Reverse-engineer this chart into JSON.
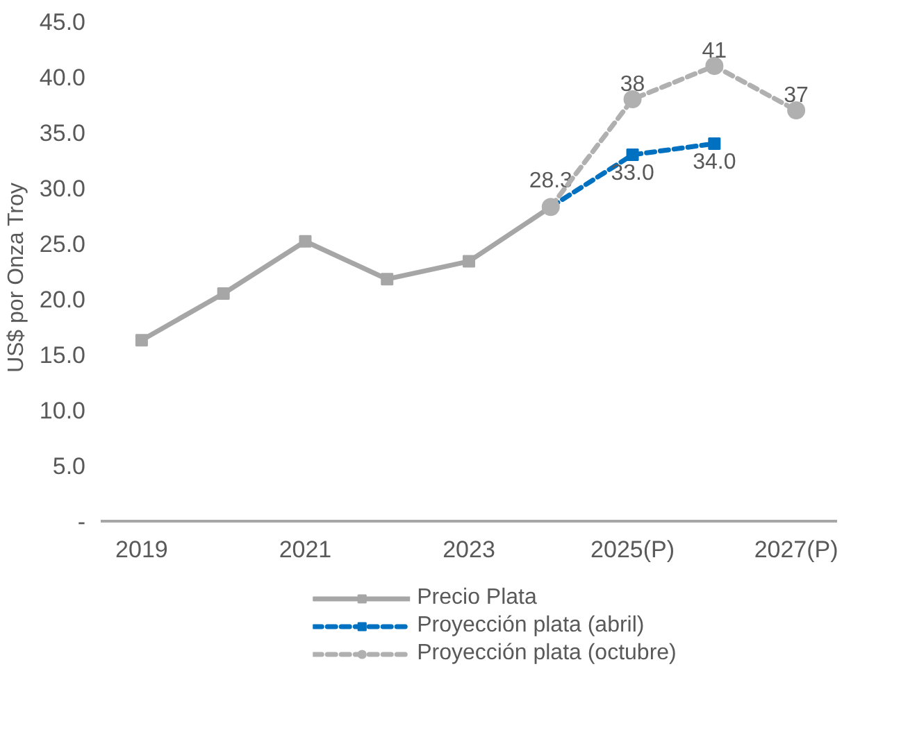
{
  "chart_data": {
    "type": "line",
    "ylabel": "US$  por Onza  Troy",
    "categories": [
      "2019",
      null,
      "2021",
      null,
      "2023",
      null,
      "2025(P)",
      null,
      "2027(P)"
    ],
    "series": [
      {
        "name": "Precio Plata",
        "color": "#a6a6a6",
        "marker": "square",
        "line_style": "solid",
        "values": [
          16.3,
          20.5,
          25.2,
          21.8,
          23.4,
          28.3,
          null,
          null,
          null
        ],
        "value_labels": [
          null,
          null,
          null,
          null,
          null,
          "28.3",
          null,
          null,
          null
        ]
      },
      {
        "name": "Proyección plata (abril)",
        "color": "#0070c0",
        "marker": "square",
        "line_style": "dashed",
        "values": [
          null,
          null,
          null,
          null,
          null,
          28.3,
          33.0,
          34.0,
          null
        ],
        "value_labels": [
          null,
          null,
          null,
          null,
          null,
          null,
          "33.0",
          "34.0",
          null
        ]
      },
      {
        "name": "Proyección plata (octubre)",
        "color": "#b0b0b0",
        "marker": "circle",
        "line_style": "dashed",
        "values": [
          null,
          null,
          null,
          null,
          null,
          28.3,
          38,
          41,
          37
        ],
        "value_labels": [
          null,
          null,
          null,
          null,
          null,
          null,
          "38",
          "41",
          "37"
        ]
      }
    ],
    "ylim": [
      0,
      45
    ],
    "yticks": [
      {
        "value": 0,
        "label": "-"
      },
      {
        "value": 5,
        "label": "5.0"
      },
      {
        "value": 10,
        "label": "10.0"
      },
      {
        "value": 15,
        "label": "15.0"
      },
      {
        "value": 20,
        "label": "20.0"
      },
      {
        "value": 25,
        "label": "25.0"
      },
      {
        "value": 30,
        "label": "30.0"
      },
      {
        "value": 35,
        "label": "35.0"
      },
      {
        "value": 40,
        "label": "40.0"
      },
      {
        "value": 45,
        "label": "45.0"
      }
    ],
    "grid": false,
    "legend": "bottom"
  }
}
